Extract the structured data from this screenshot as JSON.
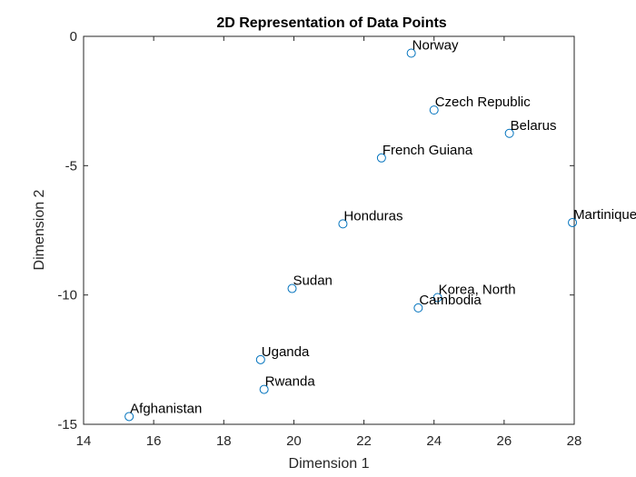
{
  "chart_data": {
    "type": "scatter",
    "title": "2D Representation of Data Points",
    "xlabel": "Dimension 1",
    "ylabel": "Dimension 2",
    "xlim": [
      14,
      28
    ],
    "ylim": [
      -15,
      0
    ],
    "xticks": [
      14,
      16,
      18,
      20,
      22,
      24,
      26,
      28
    ],
    "yticks": [
      0,
      -5,
      -10,
      -15
    ],
    "grid": false,
    "marker_color": "#0072BD",
    "points": [
      {
        "label": "Norway",
        "x": 23.35,
        "y": -0.65
      },
      {
        "label": "Czech Republic",
        "x": 24.0,
        "y": -2.85
      },
      {
        "label": "Belarus",
        "x": 26.15,
        "y": -3.75
      },
      {
        "label": "French Guiana",
        "x": 22.5,
        "y": -4.7
      },
      {
        "label": "Honduras",
        "x": 21.4,
        "y": -7.25
      },
      {
        "label": "Martinique",
        "x": 27.95,
        "y": -7.2
      },
      {
        "label": "Sudan",
        "x": 19.95,
        "y": -9.75
      },
      {
        "label": "Korea, North",
        "x": 24.1,
        "y": -10.1
      },
      {
        "label": "Cambodia",
        "x": 23.55,
        "y": -10.5
      },
      {
        "label": "Uganda",
        "x": 19.05,
        "y": -12.5
      },
      {
        "label": "Rwanda",
        "x": 19.15,
        "y": -13.65
      },
      {
        "label": "Afghanistan",
        "x": 15.3,
        "y": -14.7
      }
    ]
  }
}
